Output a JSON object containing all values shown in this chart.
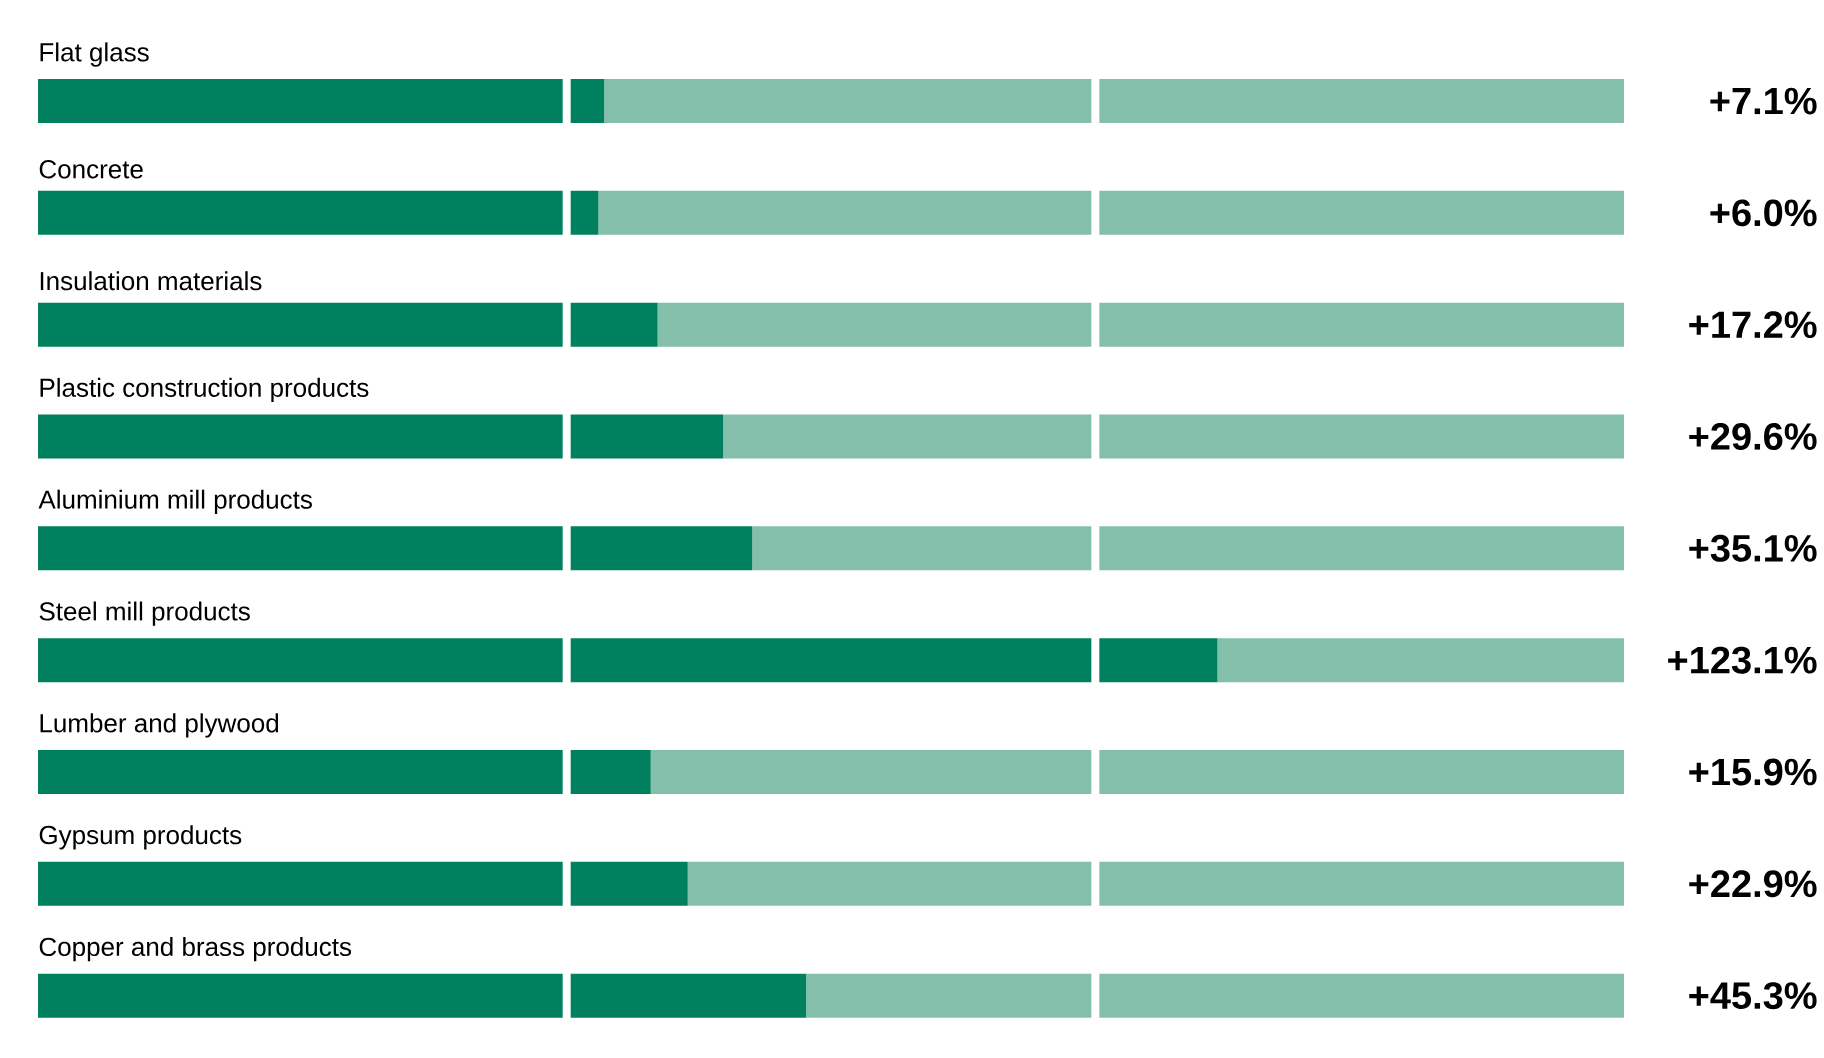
{
  "chart_data": {
    "type": "bar",
    "orientation": "horizontal",
    "stacked": true,
    "categories": [
      "Flat glass",
      "Concrete",
      "Insulation materials",
      "Plastic construction products",
      "Aluminium mill products",
      "Steel mill products",
      "Lumber and plywood",
      "Gypsum products",
      "Copper and brass products"
    ],
    "series": [
      {
        "color": "#00805f",
        "values": [
          100,
          100,
          100,
          100,
          100,
          100,
          100,
          100,
          100
        ]
      },
      {
        "color": "#00805f",
        "values": [
          7.1,
          6.0,
          17.2,
          29.6,
          35.1,
          123.1,
          15.9,
          22.9,
          45.3
        ],
        "value_labels": [
          "+7.1%",
          "+6.0%",
          "+17.2%",
          "+29.6%",
          "+35.1%",
          "+123.1%",
          "+15.9%",
          "+22.9%",
          "+45.3%"
        ]
      },
      {
        "color": "#84bfab",
        "values": [
          192.9,
          194.0,
          182.8,
          170.4,
          164.9,
          76.9,
          184.1,
          177.1,
          154.7
        ]
      }
    ],
    "xlim": [
      0,
      300
    ],
    "ref_lines": [
      {
        "axis": "x",
        "value": 100,
        "color": "#ffffff"
      },
      {
        "axis": "x",
        "value": 200,
        "color": "#ffffff"
      }
    ]
  }
}
